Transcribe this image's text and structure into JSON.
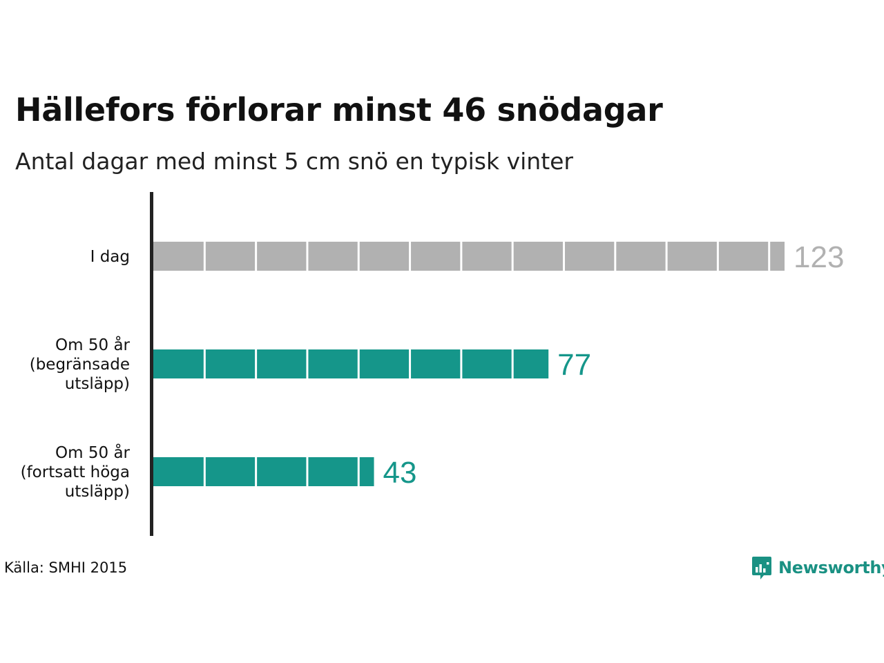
{
  "title": "Hällefors förlorar minst 46 snödagar",
  "subtitle": "Antal dagar med minst 5 cm snö en typisk vinter",
  "source": "Källa: SMHI 2015",
  "brand": "Newsworthy",
  "colors": {
    "today": "#b1b1b1",
    "future": "#15968a",
    "brand": "#1a9183",
    "axis": "#222222"
  },
  "chart_data": {
    "type": "bar",
    "orientation": "horizontal",
    "segment_size": 10,
    "categories": [
      [
        "I dag"
      ],
      [
        "Om 50 år",
        "(begränsade",
        "utsläpp)"
      ],
      [
        "Om 50 år",
        "(fortsatt höga",
        "utsläpp)"
      ]
    ],
    "values": [
      123,
      77,
      43
    ],
    "bar_colors": [
      "#b1b1b1",
      "#15968a",
      "#15968a"
    ],
    "xlim": [
      0,
      123
    ],
    "grid": false,
    "legend": "none"
  }
}
